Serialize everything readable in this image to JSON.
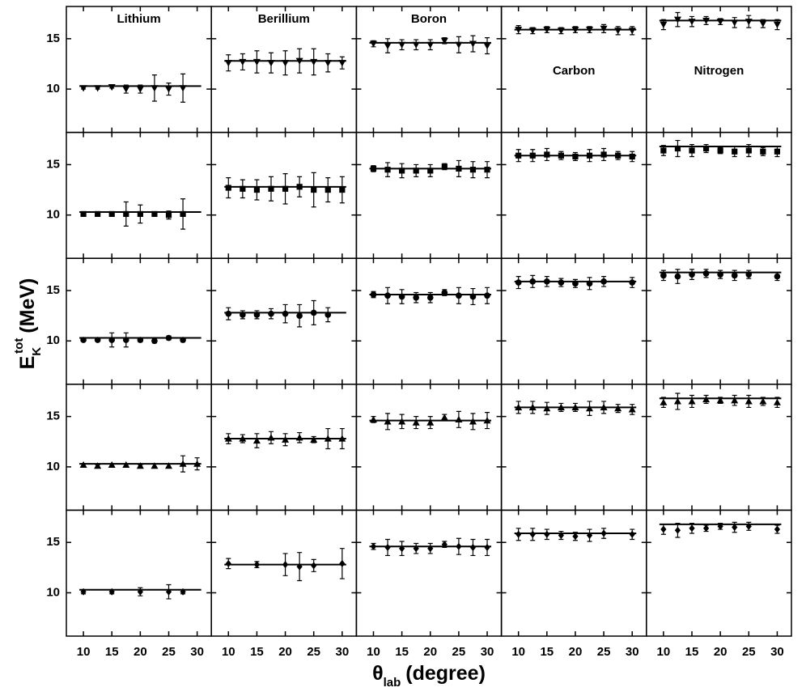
{
  "chart_data": {
    "type": "scatter",
    "x_label": {
      "main": "θ",
      "sub": "lab",
      "unit": "(degree)"
    },
    "y_label": {
      "main": "E",
      "sub": "K",
      "sup": "tot",
      "unit": "(MeV)"
    },
    "x": [
      10,
      12.5,
      15,
      17.5,
      20,
      22.5,
      25,
      27.5,
      30
    ],
    "xlim": [
      7,
      32.5
    ],
    "xticks": [
      10,
      15,
      20,
      25,
      30
    ],
    "ylim": [
      5.7,
      18.2
    ],
    "yticks": [
      10,
      15
    ],
    "color": "#000000",
    "row_markers": [
      "triangle-down",
      "square",
      "circle",
      "triangle-up",
      "diamond"
    ],
    "columns": [
      {
        "title": "Lithium",
        "fit": 10.3,
        "rows": [
          {
            "values": [
              10.1,
              10.1,
              10.2,
              10.0,
              10.0,
              10.1,
              10.0,
              10.1,
              null
            ],
            "errors": [
              0.1,
              0.1,
              0.1,
              0.4,
              0.4,
              1.3,
              0.6,
              1.4,
              null
            ]
          },
          {
            "values": [
              10.1,
              10.1,
              10.1,
              10.1,
              10.1,
              10.1,
              10.0,
              10.1,
              null
            ],
            "errors": [
              0.1,
              0.1,
              0.1,
              1.2,
              0.9,
              0.2,
              0.4,
              1.5,
              null
            ]
          },
          {
            "values": [
              10.1,
              10.1,
              10.1,
              10.1,
              10.1,
              10.0,
              10.3,
              10.1,
              null
            ],
            "errors": [
              0.1,
              0.1,
              0.7,
              0.7,
              0.2,
              0.2,
              0.2,
              0.2,
              null
            ]
          },
          {
            "values": [
              10.2,
              10.1,
              10.2,
              10.2,
              10.1,
              10.1,
              10.1,
              10.3,
              10.3
            ],
            "errors": [
              0.1,
              0.1,
              0.1,
              0.1,
              0.1,
              0.2,
              0.2,
              0.8,
              0.6
            ]
          },
          {
            "values": [
              10.1,
              null,
              10.1,
              null,
              10.1,
              null,
              10.1,
              10.1,
              null
            ],
            "errors": [
              0.2,
              null,
              0.2,
              null,
              0.4,
              null,
              0.7,
              0.2,
              null
            ]
          }
        ]
      },
      {
        "title": "Berillium",
        "fit": 12.8,
        "rows": [
          {
            "values": [
              12.6,
              12.7,
              12.7,
              12.6,
              12.6,
              12.8,
              12.7,
              12.6,
              12.6
            ],
            "errors": [
              0.8,
              0.8,
              1.1,
              1.0,
              1.2,
              1.2,
              1.3,
              0.9,
              0.6
            ]
          },
          {
            "values": [
              12.7,
              12.6,
              12.5,
              12.6,
              12.6,
              12.8,
              12.5,
              12.5,
              12.5
            ],
            "errors": [
              1.0,
              0.9,
              1.0,
              1.2,
              1.5,
              1.0,
              1.7,
              1.2,
              1.3
            ]
          },
          {
            "values": [
              12.7,
              12.6,
              12.6,
              12.7,
              12.7,
              12.5,
              12.8,
              12.6,
              null
            ],
            "errors": [
              0.6,
              0.4,
              0.4,
              0.5,
              0.9,
              1.1,
              1.2,
              0.7,
              null
            ]
          },
          {
            "values": [
              12.8,
              12.8,
              12.6,
              12.9,
              12.7,
              12.9,
              12.7,
              12.8,
              12.8
            ],
            "errors": [
              0.5,
              0.4,
              0.7,
              0.6,
              0.6,
              0.5,
              0.3,
              1.0,
              1.0
            ]
          },
          {
            "values": [
              12.9,
              null,
              12.8,
              null,
              12.8,
              12.6,
              12.7,
              null,
              12.9
            ],
            "errors": [
              0.5,
              null,
              0.3,
              null,
              1.1,
              1.4,
              0.6,
              null,
              1.5
            ]
          }
        ]
      },
      {
        "title": "Boron",
        "fit": 14.6,
        "rows": [
          {
            "values": [
              14.5,
              14.3,
              14.4,
              14.4,
              14.4,
              14.8,
              14.4,
              14.5,
              14.3
            ],
            "errors": [
              0.3,
              0.7,
              0.5,
              0.5,
              0.5,
              0.3,
              0.8,
              0.8,
              0.8
            ]
          },
          {
            "values": [
              14.6,
              14.5,
              14.4,
              14.4,
              14.4,
              14.8,
              14.6,
              14.5,
              14.5
            ],
            "errors": [
              0.3,
              0.7,
              0.7,
              0.6,
              0.6,
              0.3,
              0.8,
              0.8,
              0.8
            ]
          },
          {
            "values": [
              14.6,
              14.5,
              14.4,
              14.3,
              14.3,
              14.8,
              14.5,
              14.4,
              14.5
            ],
            "errors": [
              0.3,
              0.8,
              0.7,
              0.5,
              0.5,
              0.3,
              0.8,
              0.8,
              0.8
            ]
          },
          {
            "values": [
              14.7,
              14.5,
              14.5,
              14.4,
              14.4,
              14.9,
              14.7,
              14.5,
              14.6
            ],
            "errors": [
              0.3,
              0.8,
              0.7,
              0.6,
              0.6,
              0.3,
              0.8,
              0.8,
              0.8
            ]
          },
          {
            "values": [
              14.6,
              14.5,
              14.4,
              14.4,
              14.4,
              14.8,
              14.6,
              14.5,
              14.5
            ],
            "errors": [
              0.3,
              0.8,
              0.7,
              0.5,
              0.5,
              0.3,
              0.8,
              0.8,
              0.8
            ]
          }
        ]
      },
      {
        "title": "Carbon",
        "fit": 15.9,
        "rows": [
          {
            "values": [
              15.9,
              15.8,
              15.9,
              15.8,
              15.9,
              15.9,
              16.0,
              15.8,
              15.8
            ],
            "errors": [
              0.4,
              0.3,
              0.3,
              0.3,
              0.3,
              0.3,
              0.4,
              0.4,
              0.4
            ]
          },
          {
            "values": [
              15.9,
              15.9,
              16.0,
              15.9,
              15.8,
              15.9,
              16.0,
              15.9,
              15.8
            ],
            "errors": [
              0.6,
              0.6,
              0.6,
              0.4,
              0.4,
              0.6,
              0.6,
              0.4,
              0.5
            ]
          },
          {
            "values": [
              15.8,
              15.9,
              15.9,
              15.8,
              15.7,
              15.7,
              15.9,
              null,
              15.8
            ],
            "errors": [
              0.6,
              0.6,
              0.5,
              0.4,
              0.4,
              0.6,
              0.5,
              null,
              0.5
            ]
          },
          {
            "values": [
              15.9,
              15.9,
              15.8,
              15.9,
              15.9,
              15.8,
              15.9,
              15.8,
              15.7
            ],
            "errors": [
              0.6,
              0.6,
              0.6,
              0.4,
              0.4,
              0.7,
              0.6,
              0.4,
              0.5
            ]
          },
          {
            "values": [
              15.8,
              15.8,
              15.8,
              15.7,
              15.6,
              15.7,
              15.9,
              null,
              15.8
            ],
            "errors": [
              0.6,
              0.6,
              0.5,
              0.4,
              0.4,
              0.6,
              0.5,
              null,
              0.5
            ]
          }
        ]
      },
      {
        "title": "Nitrogen",
        "fit": 16.8,
        "rows": [
          {
            "values": [
              16.4,
              16.9,
              16.7,
              16.8,
              16.7,
              16.6,
              16.7,
              16.5,
              16.4
            ],
            "errors": [
              0.5,
              0.7,
              0.5,
              0.4,
              0.3,
              0.5,
              0.6,
              0.4,
              0.5
            ]
          },
          {
            "values": [
              16.4,
              16.6,
              16.4,
              16.6,
              16.4,
              16.3,
              16.4,
              16.3,
              16.3
            ],
            "errors": [
              0.5,
              0.8,
              0.6,
              0.4,
              0.3,
              0.5,
              0.6,
              0.4,
              0.5
            ]
          },
          {
            "values": [
              16.5,
              16.4,
              16.6,
              16.7,
              16.6,
              16.5,
              16.6,
              null,
              16.4
            ],
            "errors": [
              0.5,
              0.7,
              0.5,
              0.4,
              0.4,
              0.5,
              0.4,
              null,
              0.4
            ]
          },
          {
            "values": [
              16.4,
              16.5,
              16.5,
              16.7,
              16.6,
              16.6,
              16.5,
              16.5,
              16.4
            ],
            "errors": [
              0.5,
              0.8,
              0.6,
              0.4,
              0.3,
              0.5,
              0.6,
              0.4,
              0.5
            ]
          },
          {
            "values": [
              16.3,
              16.2,
              16.4,
              16.4,
              16.6,
              16.5,
              16.6,
              null,
              16.3
            ],
            "errors": [
              0.5,
              0.7,
              0.5,
              0.3,
              0.3,
              0.5,
              0.4,
              null,
              0.4
            ]
          }
        ]
      }
    ]
  }
}
